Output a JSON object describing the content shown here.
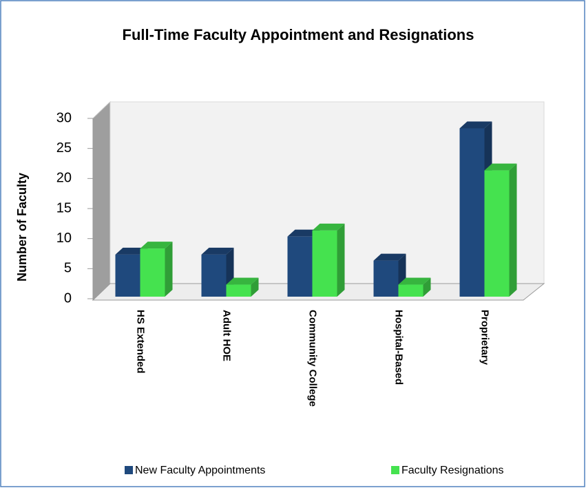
{
  "chart_data": {
    "type": "bar3d",
    "title": "Full-Time Faculty Appointment and Resignations",
    "y_label": "Number of Faculty",
    "categories": [
      "HS Extended",
      "Adult HOE",
      "Community College",
      "Hospital-Based",
      "Proprietary"
    ],
    "series": [
      {
        "name": "New Faculty Appointments",
        "color": "#1f497d",
        "values": [
          7,
          7,
          10,
          6,
          28
        ]
      },
      {
        "name": "Faculty Resignations",
        "color": "#45e24f",
        "values": [
          8,
          2,
          11,
          2,
          21
        ]
      }
    ],
    "ylim": [
      0,
      30
    ],
    "yticks": [
      0,
      5,
      10,
      15,
      20,
      25,
      30
    ],
    "legend": "bottom"
  }
}
